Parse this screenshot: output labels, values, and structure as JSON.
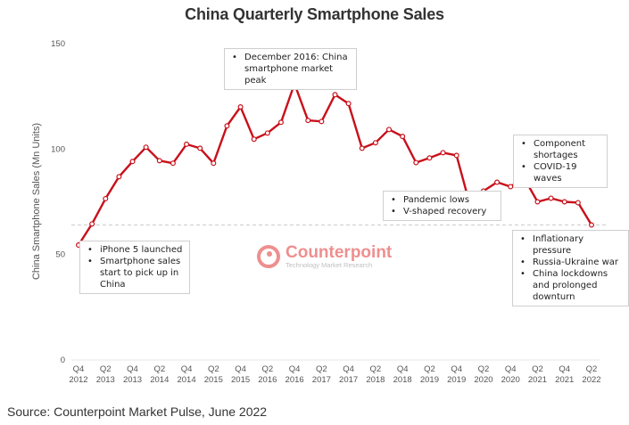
{
  "chart_data": {
    "type": "line",
    "title": "China Quarterly Smartphone Sales",
    "xlabel": "",
    "ylabel": "China Smartphone Sales (Mn Units)",
    "ylim": [
      0,
      150
    ],
    "yticks": [
      0,
      50,
      100,
      150
    ],
    "grid": false,
    "x": [
      "Q4 2012",
      "Q1 2013",
      "Q2 2013",
      "Q3 2013",
      "Q4 2013",
      "Q1 2014",
      "Q2 2014",
      "Q3 2014",
      "Q4 2014",
      "Q1 2015",
      "Q2 2015",
      "Q3 2015",
      "Q4 2015",
      "Q1 2016",
      "Q2 2016",
      "Q3 2016",
      "Q4 2016",
      "Q1 2017",
      "Q2 2017",
      "Q3 2017",
      "Q4 2017",
      "Q1 2018",
      "Q2 2018",
      "Q3 2018",
      "Q4 2018",
      "Q1 2019",
      "Q2 2019",
      "Q3 2019",
      "Q4 2019",
      "Q1 2020",
      "Q2 2020",
      "Q3 2020",
      "Q4 2020",
      "Q1 2021",
      "Q2 2021",
      "Q3 2021",
      "Q4 2021",
      "Q1 2022",
      "Q2 2022"
    ],
    "xtick_labels": [
      {
        "q": "Q4",
        "y": "2012"
      },
      {
        "q": "Q2",
        "y": "2013"
      },
      {
        "q": "Q4",
        "y": "2013"
      },
      {
        "q": "Q2",
        "y": "2014"
      },
      {
        "q": "Q4",
        "y": "2014"
      },
      {
        "q": "Q2",
        "y": "2015"
      },
      {
        "q": "Q4",
        "y": "2015"
      },
      {
        "q": "Q2",
        "y": "2016"
      },
      {
        "q": "Q4",
        "y": "2016"
      },
      {
        "q": "Q2",
        "y": "2017"
      },
      {
        "q": "Q4",
        "y": "2017"
      },
      {
        "q": "Q2",
        "y": "2018"
      },
      {
        "q": "Q4",
        "y": "2018"
      },
      {
        "q": "Q2",
        "y": "2019"
      },
      {
        "q": "Q4",
        "y": "2019"
      },
      {
        "q": "Q2",
        "y": "2020"
      },
      {
        "q": "Q4",
        "y": "2020"
      },
      {
        "q": "Q2",
        "y": "2021"
      },
      {
        "q": "Q4",
        "y": "2021"
      },
      {
        "q": "Q2",
        "y": "2022"
      }
    ],
    "series": [
      {
        "name": "China Smartphone Sales",
        "color": "#c8101a",
        "values": [
          54.5,
          64.5,
          76.5,
          86.9,
          94.1,
          100.9,
          94.5,
          93.3,
          102.3,
          100.4,
          93.3,
          111.0,
          120.0,
          104.7,
          107.6,
          112.7,
          131.0,
          113.6,
          113.1,
          125.8,
          121.6,
          100.4,
          103.0,
          109.3,
          106.0,
          93.6,
          95.8,
          98.3,
          97.0,
          73.5,
          80.1,
          84.3,
          82.2,
          86.4,
          75.0,
          76.7,
          75.0,
          74.6,
          64.0
        ]
      }
    ],
    "reference_line": {
      "value": 64,
      "style": "dashed",
      "color": "#cccccc"
    },
    "annotations": [
      {
        "id": "iphone",
        "anchor": "Q4 2012",
        "items": [
          "iPhone 5 launched",
          "Smartphone sales start to pick up in China"
        ]
      },
      {
        "id": "peak",
        "anchor": "Q4 2016",
        "items": [
          "December 2016: China smartphone market peak"
        ]
      },
      {
        "id": "pandemic",
        "anchor": "Q1 2020",
        "items": [
          "Pandemic lows",
          "V-shaped recovery"
        ]
      },
      {
        "id": "component",
        "anchor": "Q1 2021",
        "items": [
          "Component shortages",
          "COVID-19 waves"
        ]
      },
      {
        "id": "inflation",
        "anchor": "Q2 2022",
        "items": [
          "Inflationary pressure",
          "Russia-Ukraine war",
          "China lockdowns and prolonged downturn"
        ]
      }
    ]
  },
  "logo": {
    "name": "Counterpoint",
    "tagline": "Technology Market Research"
  },
  "source": "Source: Counterpoint Market Pulse, June 2022"
}
